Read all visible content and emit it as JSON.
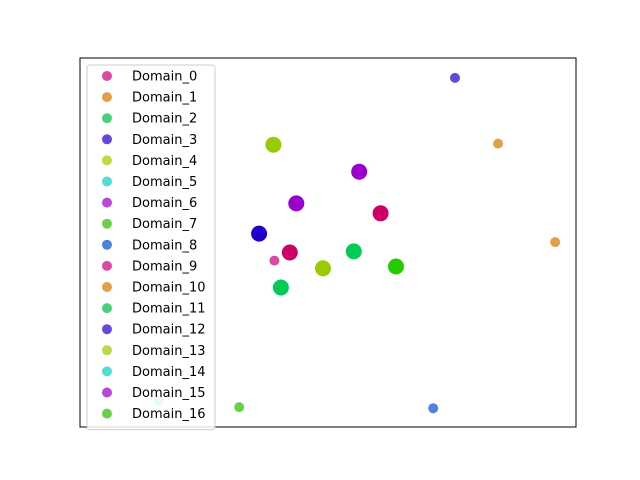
{
  "chart_data": {
    "type": "scatter",
    "title": "",
    "xlabel": "",
    "ylabel": "",
    "grid": false,
    "axis_ticks": false,
    "xlim": [
      0,
      100
    ],
    "ylim": [
      0,
      100
    ],
    "legend_position": "top-left",
    "series": [
      {
        "name": "Domain_0",
        "color": "#d6359a",
        "x": [],
        "y": []
      },
      {
        "name": "Domain_1",
        "color": "#e09634",
        "x": [
          84.3
        ],
        "y": [
          76.8
        ]
      },
      {
        "name": "Domain_2",
        "color": "#33cc6e",
        "x": [],
        "y": []
      },
      {
        "name": "Domain_3",
        "color": "#5533d6",
        "x": [
          75.6
        ],
        "y": [
          94.6
        ]
      },
      {
        "name": "Domain_4",
        "color": "#b5d631",
        "x": [],
        "y": []
      },
      {
        "name": "Domain_5",
        "color": "#3fd9d3",
        "x": [],
        "y": []
      },
      {
        "name": "Domain_6",
        "color": "#b133d6",
        "x": [],
        "y": []
      },
      {
        "name": "Domain_7",
        "color": "#5acc33",
        "x": [],
        "y": []
      },
      {
        "name": "Domain_8",
        "color": "#3a73d6",
        "x": [
          71.2
        ],
        "y": [
          5.1
        ]
      },
      {
        "name": "Domain_9",
        "color": "#d6359a",
        "x": [
          39.2
        ],
        "y": [
          45.1
        ]
      },
      {
        "name": "Domain_10",
        "color": "#e09634",
        "x": [
          95.8
        ],
        "y": [
          50.1
        ]
      },
      {
        "name": "Domain_11",
        "color": "#33cc6e",
        "x": [],
        "y": []
      },
      {
        "name": "Domain_12",
        "color": "#5533d6",
        "x": [],
        "y": []
      },
      {
        "name": "Domain_13",
        "color": "#b5d631",
        "x": [],
        "y": []
      },
      {
        "name": "Domain_14",
        "color": "#3fd9d3",
        "x": [
          15.9
        ],
        "y": [
          7.0
        ]
      },
      {
        "name": "Domain_15",
        "color": "#b133d6",
        "x": [],
        "y": []
      },
      {
        "name": "Domain_16",
        "color": "#5acc33",
        "x": [
          32.1
        ],
        "y": [
          5.4
        ]
      }
    ],
    "cluster_points": [
      {
        "x": 39.0,
        "y": 76.5,
        "color": "#99cc00"
      },
      {
        "x": 56.3,
        "y": 69.2,
        "color": "#9900cc"
      },
      {
        "x": 43.6,
        "y": 60.6,
        "color": "#9900cc"
      },
      {
        "x": 60.6,
        "y": 57.9,
        "color": "#cc0066"
      },
      {
        "x": 36.1,
        "y": 52.4,
        "color": "#2200cc"
      },
      {
        "x": 42.3,
        "y": 47.3,
        "color": "#cc0066"
      },
      {
        "x": 55.2,
        "y": 47.6,
        "color": "#00cc55"
      },
      {
        "x": 49.0,
        "y": 43.0,
        "color": "#99cc00"
      },
      {
        "x": 63.7,
        "y": 43.5,
        "color": "#22cc00"
      },
      {
        "x": 40.5,
        "y": 37.8,
        "color": "#00cc55"
      }
    ]
  }
}
